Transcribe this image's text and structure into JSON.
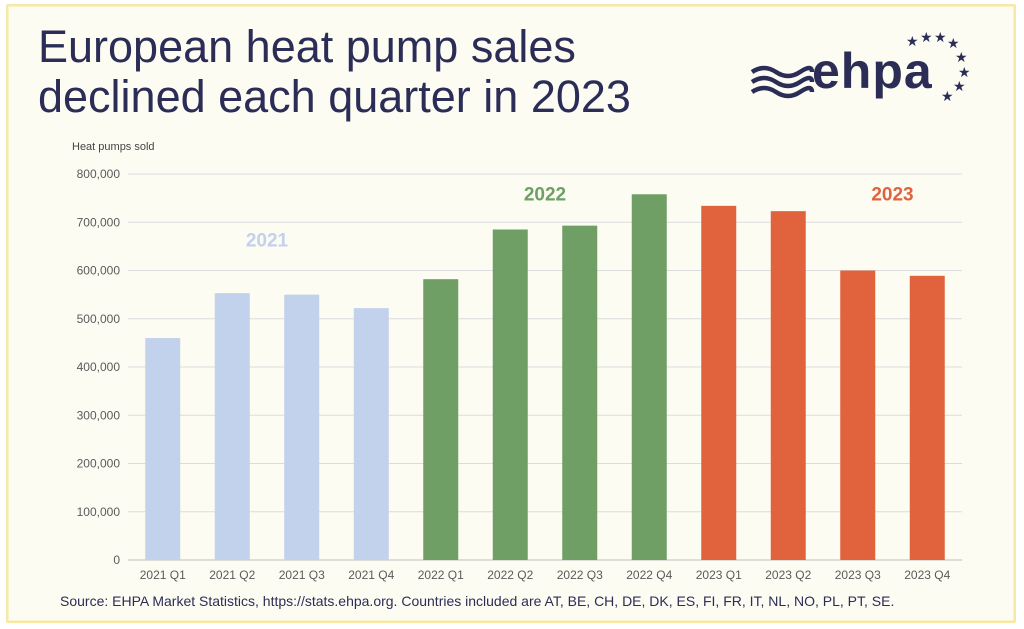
{
  "header": {
    "title": "European heat pump sales\ndeclined each quarter in 2023",
    "logo_text": "ehpa"
  },
  "colors": {
    "title": "#2b2d57",
    "series_2021": "#c2d1ec",
    "series_2022": "#6f9f64",
    "series_2023": "#e0633e",
    "axis_text": "#5a5a5a",
    "grid": "#dcdcdc"
  },
  "chart_data": {
    "type": "bar",
    "ylabel": "Heat pumps sold",
    "xlabel": "",
    "ylim": [
      0,
      800000
    ],
    "yticks": [
      0,
      100000,
      200000,
      300000,
      400000,
      500000,
      600000,
      700000,
      800000
    ],
    "ytick_labels": [
      "0",
      "100,000",
      "200,000",
      "300,000",
      "400,000",
      "500,000",
      "600,000",
      "700,000",
      "800,000"
    ],
    "grid": true,
    "categories": [
      "2021 Q1",
      "2021 Q2",
      "2021 Q3",
      "2021 Q4",
      "2022 Q1",
      "2022 Q2",
      "2022 Q3",
      "2022 Q4",
      "2023 Q1",
      "2023 Q2",
      "2023 Q3",
      "2023 Q4"
    ],
    "values": [
      460000,
      553000,
      550000,
      522000,
      582000,
      685000,
      693000,
      758000,
      734000,
      723000,
      600000,
      589000
    ],
    "bar_colors": [
      "#c2d1ec",
      "#c2d1ec",
      "#c2d1ec",
      "#c2d1ec",
      "#6f9f64",
      "#6f9f64",
      "#6f9f64",
      "#6f9f64",
      "#e0633e",
      "#e0633e",
      "#e0633e",
      "#e0633e"
    ],
    "annotations": [
      {
        "text": "2021",
        "x_index": 1.5,
        "y": 650000,
        "color": "#c2d1ec"
      },
      {
        "text": "2022",
        "x_index": 5.5,
        "y": 745000,
        "color": "#6f9f64"
      },
      {
        "text": "2023",
        "x_index": 10.5,
        "y": 745000,
        "color": "#e0633e"
      }
    ]
  },
  "footer": {
    "source": "Source: EHPA Market Statistics, https://stats.ehpa.org. Countries included are AT, BE, CH, DE, DK, ES, FI, FR, IT, NL, NO, PL, PT, SE."
  }
}
